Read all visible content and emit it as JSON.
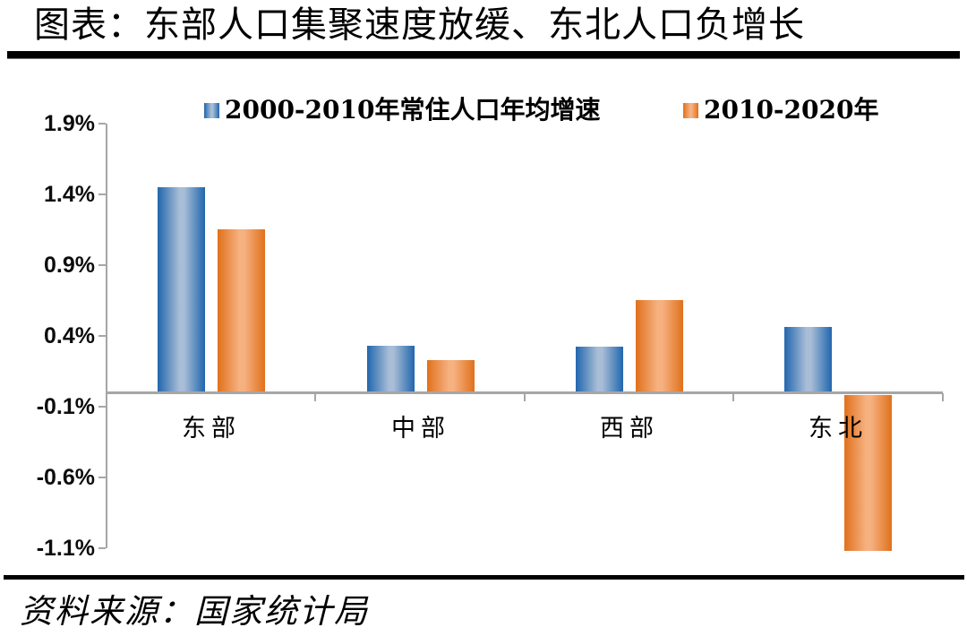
{
  "title": "图表：东部人口集聚速度放缓、东北人口负增长",
  "source": "资料来源：国家统计局",
  "chart_data": {
    "type": "bar",
    "title": "图表：东部人口集聚速度放缓、东北人口负增长",
    "categories": [
      "东部",
      "中部",
      "西部",
      "东北"
    ],
    "series": [
      {
        "name": "2000-2010年常住人口年均增速",
        "values": [
          1.45,
          0.33,
          0.32,
          0.46
        ],
        "unit": "%",
        "color_edge": "#2166AE",
        "color_mid": "#A8BDD6"
      },
      {
        "name": "2010-2020年",
        "values": [
          1.15,
          0.23,
          0.65,
          -1.1
        ],
        "unit": "%",
        "color_edge": "#E0711C",
        "color_mid": "#F6B181"
      }
    ],
    "y_tick_labels": [
      "1.9%",
      "1.4%",
      "0.9%",
      "0.4%",
      "-0.1%",
      "-0.6%",
      "-1.1%"
    ],
    "y_tick_values": [
      1.9,
      1.4,
      0.9,
      0.4,
      -0.1,
      -0.6,
      -1.1
    ],
    "ylim": [
      -1.1,
      1.9
    ],
    "xlabel": "",
    "ylabel": "",
    "grid": false,
    "legend_position": "top",
    "axis_color": "#A6A6A6"
  }
}
